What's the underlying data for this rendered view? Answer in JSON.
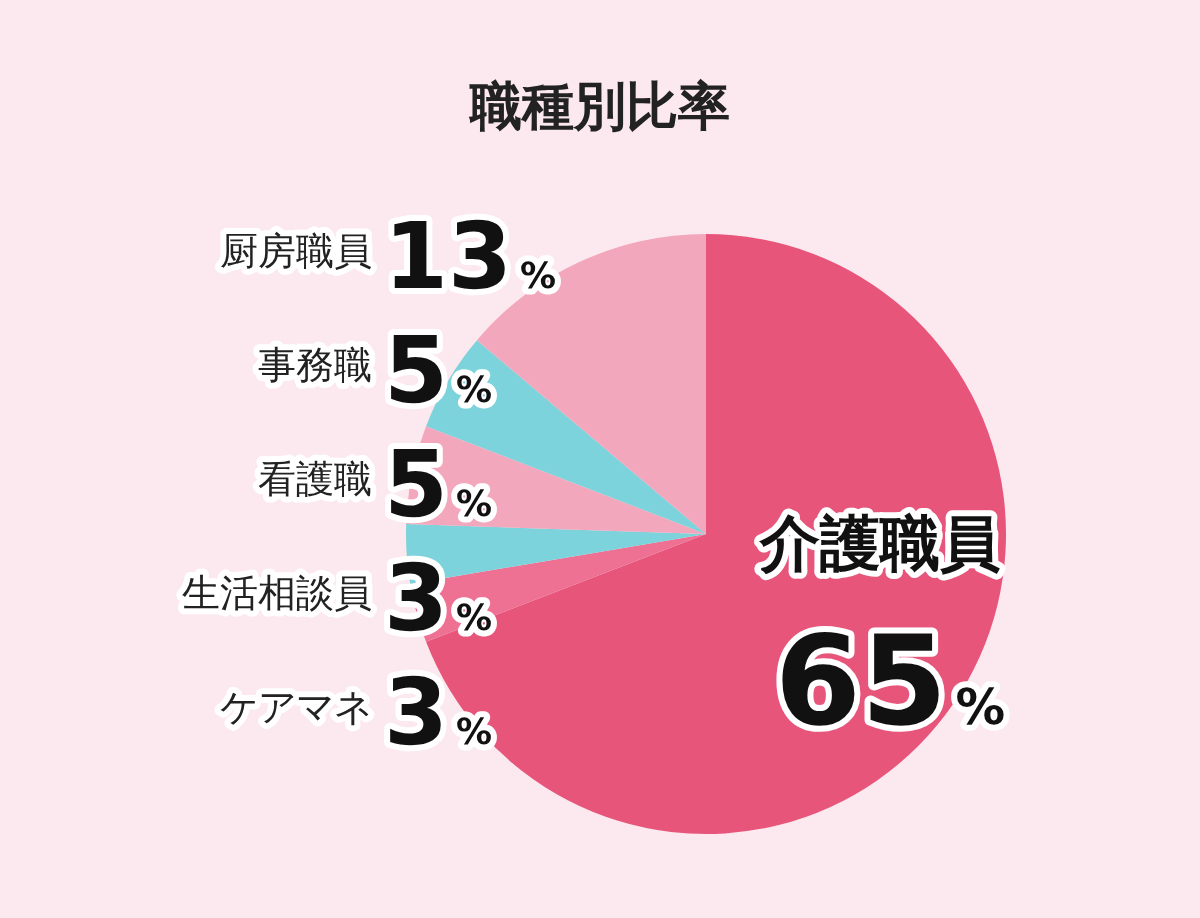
{
  "chart_data": {
    "type": "pie",
    "title": "職種別比率",
    "categories": [
      "介護職員",
      "ケアマネ",
      "生活相談員",
      "看護職",
      "事務職",
      "厨房職員"
    ],
    "values": [
      65,
      3,
      3,
      5,
      5,
      13
    ],
    "value_labels": [
      "65%",
      "3%",
      "3%",
      "5%",
      "5%",
      "13%"
    ],
    "colors": [
      "#e8557b",
      "#ee7194",
      "#7dd3db",
      "#f2a7bc",
      "#7dd3db",
      "#f2a7bc"
    ]
  }
}
